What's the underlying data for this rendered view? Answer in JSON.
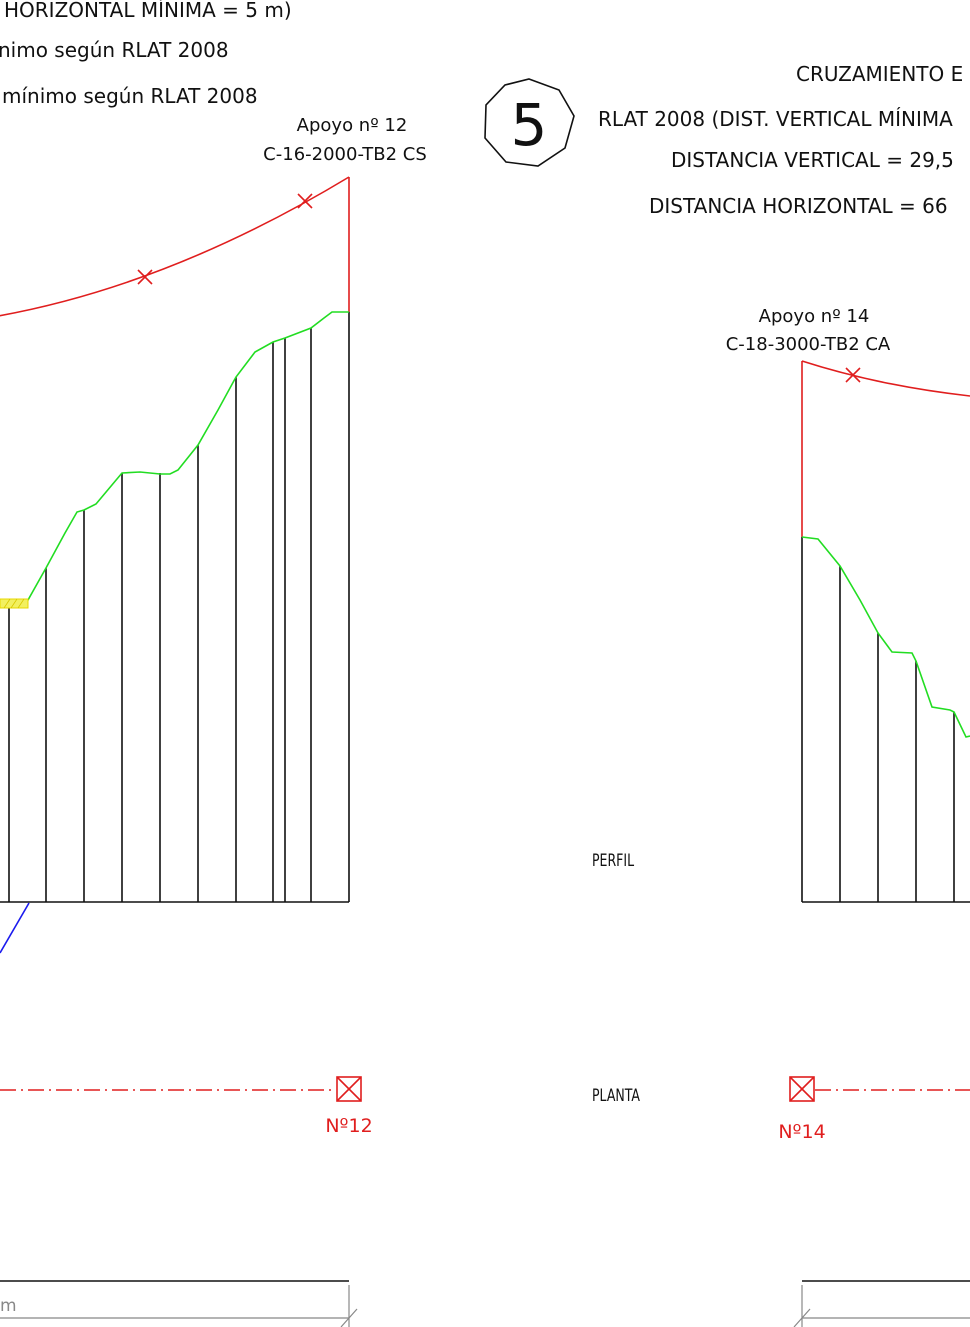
{
  "top_notes": {
    "line1": "HORIZONTAL MÍNIMA = 5 m)",
    "line2": "nimo según RLAT 2008",
    "line3": "mínimo según RLAT 2008"
  },
  "crossing_number": "5",
  "crossing_block": {
    "title": "CRUZAMIENTO E",
    "rule": "RLAT 2008 (DIST. VERTICAL MÍNIMA",
    "vertical": "DISTANCIA VERTICAL =  29,5",
    "horizontal": "DISTANCIA HORIZONTAL =  66"
  },
  "support_left": {
    "name": "Apoyo nº 12",
    "model": "C-16-2000-TB2 CS",
    "plan_label": "Nº12"
  },
  "support_right": {
    "name": "Apoyo nº 14",
    "model": "C-18-3000-TB2 CA",
    "plan_label": "Nº14"
  },
  "section_labels": {
    "profile": "PERFIL",
    "plan": "PLANTA"
  },
  "scale_bar_left_text": "m",
  "colors": {
    "conductor": "#e01e1e",
    "terrain": "#22dd22",
    "crossing_line": "#1a1aee",
    "crossing_zone": "#f2e600",
    "structure": "#111111"
  }
}
